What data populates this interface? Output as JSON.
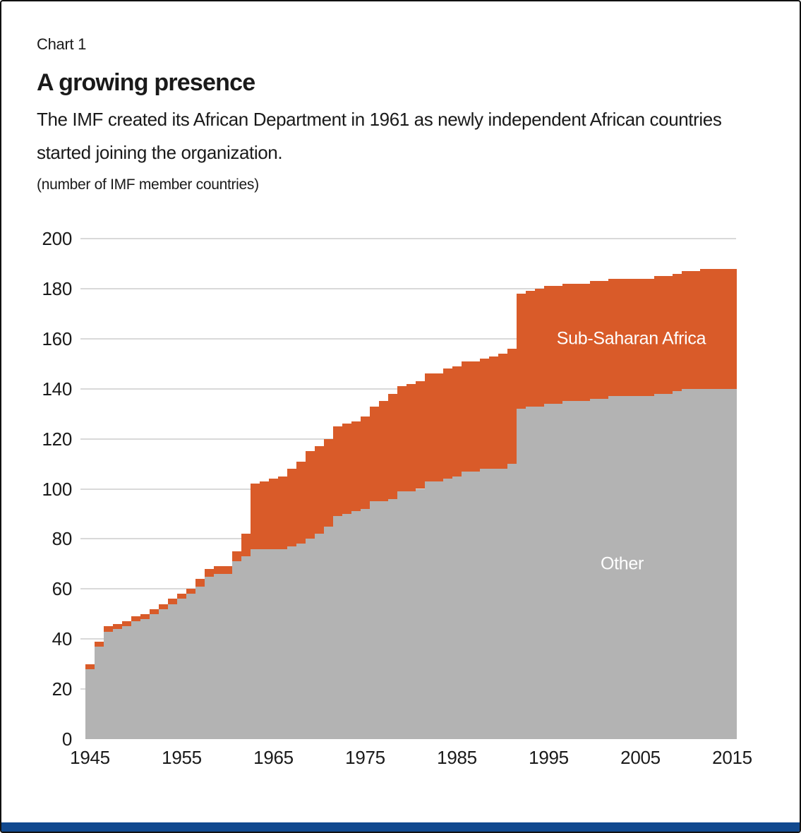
{
  "page": {
    "chart_label": "Chart 1",
    "title": "A growing presence",
    "subtitle": "The IMF created its African Department in 1961 as newly independent African countries started joining the organization.",
    "units_note": "(number of IMF member countries)"
  },
  "colors": {
    "ssa": "#D95B29",
    "other": "#B3B3B3",
    "gridline": "#D9D9D9",
    "text": "#1A1A1A",
    "area_label": "#FFFFFF",
    "footer_bar": "#11498F",
    "frame": "#111111"
  },
  "chart_data": {
    "type": "area",
    "variant": "stacked annual step bars",
    "stacked": true,
    "grid": "horizontal",
    "ylim": [
      0,
      200
    ],
    "y_ticks": [
      0,
      20,
      40,
      60,
      80,
      100,
      120,
      140,
      160,
      180,
      200
    ],
    "x_ticks": [
      1945,
      1955,
      1965,
      1975,
      1985,
      1995,
      2005,
      2015
    ],
    "x": [
      1945,
      1946,
      1947,
      1948,
      1949,
      1950,
      1951,
      1952,
      1953,
      1954,
      1955,
      1956,
      1957,
      1958,
      1959,
      1960,
      1961,
      1962,
      1963,
      1964,
      1965,
      1966,
      1967,
      1968,
      1969,
      1970,
      1971,
      1972,
      1973,
      1974,
      1975,
      1976,
      1977,
      1978,
      1979,
      1980,
      1981,
      1982,
      1983,
      1984,
      1985,
      1986,
      1987,
      1988,
      1989,
      1990,
      1991,
      1992,
      1993,
      1994,
      1995,
      1996,
      1997,
      1998,
      1999,
      2000,
      2001,
      2002,
      2003,
      2004,
      2005,
      2006,
      2007,
      2008,
      2009,
      2010,
      2011,
      2012,
      2013,
      2014,
      2015
    ],
    "series": [
      {
        "name": "Other",
        "color_key": "other",
        "values": [
          28,
          37,
          43,
          44,
          45,
          47,
          48,
          50,
          52,
          54,
          56,
          58,
          61,
          65,
          66,
          66,
          71,
          73,
          76,
          76,
          76,
          76,
          77,
          78,
          80,
          82,
          85,
          89,
          90,
          91,
          92,
          95,
          95,
          96,
          99,
          99,
          100,
          103,
          103,
          104,
          105,
          107,
          107,
          108,
          108,
          108,
          110,
          132,
          133,
          133,
          134,
          134,
          135,
          135,
          135,
          136,
          136,
          137,
          137,
          137,
          137,
          137,
          138,
          138,
          139,
          140,
          140,
          140,
          140,
          140,
          140
        ]
      },
      {
        "name": "Sub-Saharan Africa",
        "color_key": "ssa",
        "values": [
          2,
          2,
          2,
          2,
          2,
          2,
          2,
          2,
          2,
          2,
          2,
          2,
          3,
          3,
          3,
          3,
          4,
          9,
          26,
          27,
          28,
          29,
          31,
          33,
          35,
          35,
          35,
          36,
          36,
          36,
          37,
          38,
          40,
          42,
          42,
          43,
          43,
          43,
          43,
          44,
          44,
          44,
          44,
          44,
          45,
          46,
          46,
          46,
          46,
          47,
          47,
          47,
          47,
          47,
          47,
          47,
          47,
          47,
          47,
          47,
          47,
          47,
          47,
          47,
          47,
          47,
          47,
          48,
          48,
          48,
          48
        ]
      }
    ],
    "annotations": [
      {
        "text": "Sub-Saharan Africa",
        "year": 2004,
        "value": 160,
        "series": "Sub-Saharan Africa"
      },
      {
        "text": "Other",
        "year": 2003,
        "value": 70,
        "series": "Other"
      }
    ],
    "legend_position": "labels inside plot areas"
  }
}
